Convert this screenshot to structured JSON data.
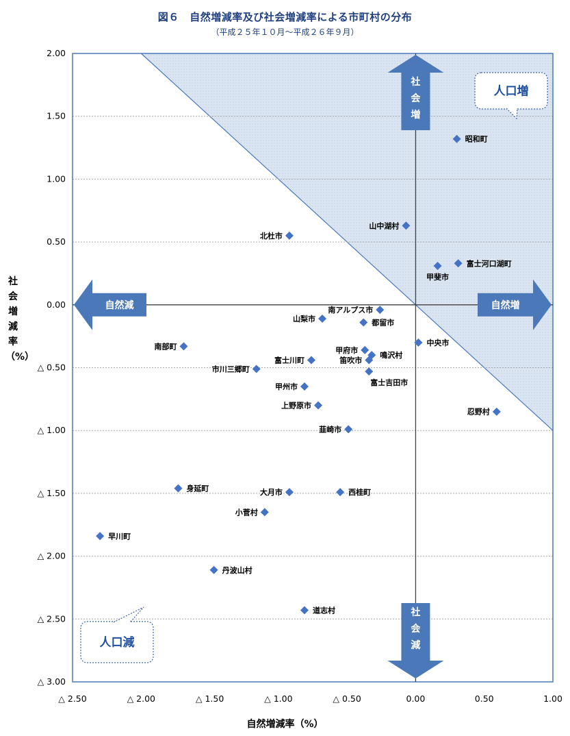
{
  "title": "図６　自然増減率及び社会増減率による市町村の分布",
  "subtitle": "（平成２５年１０月〜平成２６年９月）",
  "chart_data": {
    "type": "scatter",
    "xlabel": "自然増減率（%）",
    "ylabel": "社会増減率（%）",
    "xlim": [
      -2.5,
      1.0
    ],
    "ylim": [
      -3.0,
      2.0
    ],
    "x_ticks": [
      {
        "value": -2.5,
        "label": "△ 2.50"
      },
      {
        "value": -2.0,
        "label": "△ 2.00"
      },
      {
        "value": -1.5,
        "label": "△ 1.50"
      },
      {
        "value": -1.0,
        "label": "△ 1.00"
      },
      {
        "value": -0.5,
        "label": "△ 0.50"
      },
      {
        "value": 0.0,
        "label": "0.00"
      },
      {
        "value": 0.5,
        "label": "0.50"
      },
      {
        "value": 1.0,
        "label": "1.00"
      }
    ],
    "y_ticks": [
      {
        "value": 2.0,
        "label": "2.00"
      },
      {
        "value": 1.5,
        "label": "1.50"
      },
      {
        "value": 1.0,
        "label": "1.00"
      },
      {
        "value": 0.5,
        "label": "0.50"
      },
      {
        "value": 0.0,
        "label": "0.00"
      },
      {
        "value": -0.5,
        "label": "△ 0.50"
      },
      {
        "value": -1.0,
        "label": "△ 1.00"
      },
      {
        "value": -1.5,
        "label": "△ 1.50"
      },
      {
        "value": -2.0,
        "label": "△ 2.00"
      },
      {
        "value": -2.5,
        "label": "△ 2.50"
      },
      {
        "value": -3.0,
        "label": "△ 3.00"
      }
    ],
    "grid": "horizontal",
    "marker_color": "#4472c4",
    "shade_color": "#dbe5f1",
    "arrow_color": "#4a78b8",
    "points": [
      {
        "name": "昭和町",
        "x": 0.3,
        "y": 1.32,
        "label_pos": "right"
      },
      {
        "name": "山中湖村",
        "x": -0.07,
        "y": 0.63,
        "label_pos": "left"
      },
      {
        "name": "北杜市",
        "x": -0.92,
        "y": 0.55,
        "label_pos": "left"
      },
      {
        "name": "富士河口湖町",
        "x": 0.31,
        "y": 0.33,
        "label_pos": "right"
      },
      {
        "name": "甲斐市",
        "x": 0.16,
        "y": 0.31,
        "label_pos": "below"
      },
      {
        "name": "南アルプス市",
        "x": -0.26,
        "y": -0.04,
        "label_pos": "left"
      },
      {
        "name": "山梨市",
        "x": -0.68,
        "y": -0.11,
        "label_pos": "left"
      },
      {
        "name": "都留市",
        "x": -0.38,
        "y": -0.14,
        "label_pos": "right"
      },
      {
        "name": "中央市",
        "x": 0.02,
        "y": -0.3,
        "label_pos": "right"
      },
      {
        "name": "南部町",
        "x": -1.69,
        "y": -0.33,
        "label_pos": "left"
      },
      {
        "name": "甲府市",
        "x": -0.37,
        "y": -0.36,
        "label_pos": "left"
      },
      {
        "name": "鳴沢村",
        "x": -0.32,
        "y": -0.4,
        "label_pos": "right"
      },
      {
        "name": "富士川町",
        "x": -0.76,
        "y": -0.44,
        "label_pos": "left"
      },
      {
        "name": "笛吹市",
        "x": -0.34,
        "y": -0.44,
        "label_pos": "left"
      },
      {
        "name": "市川三郷町",
        "x": -1.16,
        "y": -0.51,
        "label_pos": "left"
      },
      {
        "name": "富士吉田市",
        "x": -0.34,
        "y": -0.53,
        "label_pos": "below"
      },
      {
        "name": "甲州市",
        "x": -0.81,
        "y": -0.65,
        "label_pos": "left"
      },
      {
        "name": "上野原市",
        "x": -0.71,
        "y": -0.8,
        "label_pos": "left"
      },
      {
        "name": "忍野村",
        "x": 0.59,
        "y": -0.85,
        "label_pos": "left"
      },
      {
        "name": "韮崎市",
        "x": -0.49,
        "y": -0.99,
        "label_pos": "left"
      },
      {
        "name": "身延町",
        "x": -1.73,
        "y": -1.46,
        "label_pos": "right"
      },
      {
        "name": "大月市",
        "x": -0.92,
        "y": -1.49,
        "label_pos": "left"
      },
      {
        "name": "西桂町",
        "x": -0.55,
        "y": -1.49,
        "label_pos": "right"
      },
      {
        "name": "小菅村",
        "x": -1.1,
        "y": -1.65,
        "label_pos": "left"
      },
      {
        "name": "早川町",
        "x": -2.3,
        "y": -1.84,
        "label_pos": "right"
      },
      {
        "name": "丹波山村",
        "x": -1.47,
        "y": -2.11,
        "label_pos": "right"
      },
      {
        "name": "道志村",
        "x": -0.81,
        "y": -2.43,
        "label_pos": "right"
      }
    ],
    "annotations": {
      "social_up": "社会増",
      "social_down": "社会減",
      "natural_up": "自然増",
      "natural_down": "自然減",
      "population_up": "人口増",
      "population_down": "人口減"
    }
  }
}
